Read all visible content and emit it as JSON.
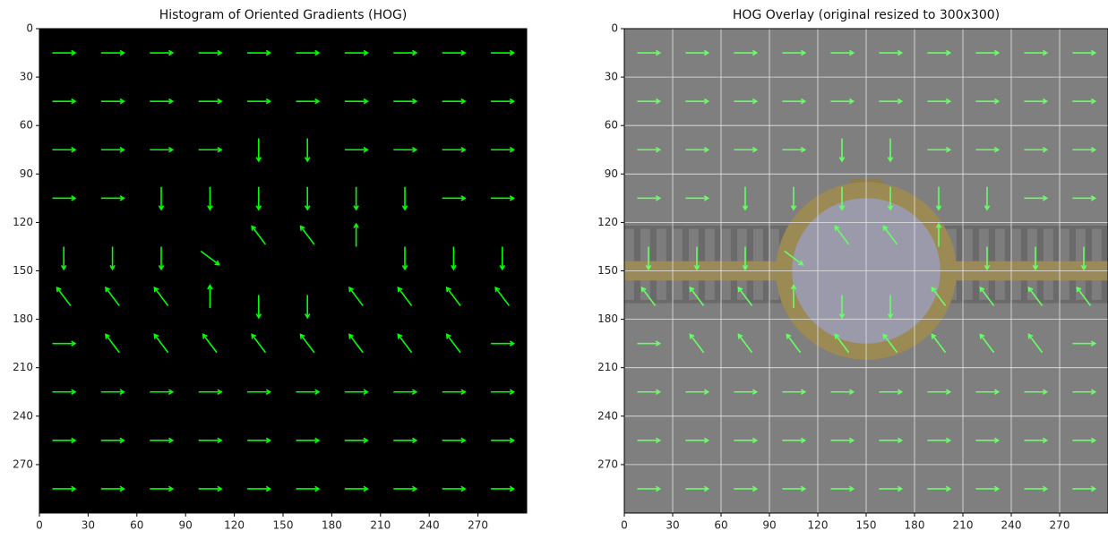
{
  "chart_data": [
    {
      "type": "image",
      "title": "Histogram of Oriented Gradients (HOG)",
      "xlim": [
        0,
        300
      ],
      "ylim": [
        300,
        0
      ],
      "xticks": [
        0,
        30,
        60,
        90,
        120,
        150,
        180,
        210,
        240,
        270
      ],
      "yticks": [
        0,
        30,
        60,
        90,
        120,
        150,
        180,
        210,
        240,
        270
      ],
      "grid": false
    },
    {
      "type": "image",
      "title": "HOG Overlay (original resized to 300x300)",
      "xlim": [
        0,
        300
      ],
      "ylim": [
        300,
        0
      ],
      "xticks": [
        0,
        30,
        60,
        90,
        120,
        150,
        180,
        210,
        240,
        270
      ],
      "yticks": [
        0,
        30,
        60,
        90,
        120,
        150,
        180,
        210,
        240,
        270
      ],
      "grid": true
    }
  ]
}
